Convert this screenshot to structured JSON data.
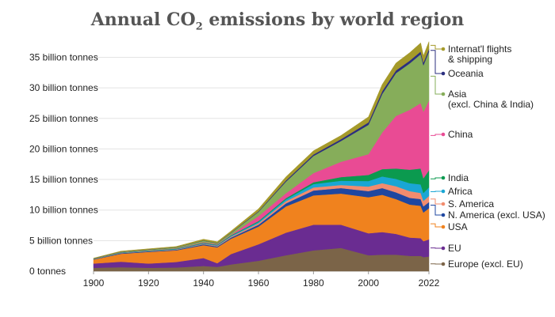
{
  "chart_data": {
    "type": "area",
    "stacked": true,
    "title": "Annual CO₂ emissions by world region",
    "title_main": "Annual CO",
    "title_sub": "2",
    "title_rest": " emissions by world region",
    "xlabel": "",
    "ylabel": "",
    "xlim": [
      1900,
      2022
    ],
    "ylim": [
      0,
      37
    ],
    "grid": true,
    "legend": "right (direct labels)",
    "x_ticks": [
      "1900",
      "1920",
      "1940",
      "1960",
      "1980",
      "2000",
      "2022"
    ],
    "y_ticks": [
      {
        "value": 0,
        "label": "0 tonnes"
      },
      {
        "value": 5,
        "label": "5 billion tonnes"
      },
      {
        "value": 10,
        "label": "10 billion tonnes"
      },
      {
        "value": 15,
        "label": "15 billion tonnes"
      },
      {
        "value": 20,
        "label": "20 billion tonnes"
      },
      {
        "value": 25,
        "label": "25 billion tonnes"
      },
      {
        "value": 30,
        "label": "30 billion tonnes"
      },
      {
        "value": 35,
        "label": "35 billion tonnes"
      }
    ],
    "x": [
      1900,
      1910,
      1920,
      1930,
      1940,
      1945,
      1950,
      1960,
      1970,
      1980,
      1990,
      2000,
      2005,
      2010,
      2015,
      2019,
      2020,
      2022
    ],
    "series": [
      {
        "name": "Europe (excl. EU)",
        "color": "#7b6448",
        "values": [
          0.55,
          0.65,
          0.55,
          0.6,
          0.85,
          0.7,
          1.1,
          1.7,
          2.6,
          3.4,
          3.8,
          2.6,
          2.7,
          2.7,
          2.5,
          2.5,
          2.3,
          2.4
        ]
      },
      {
        "name": "EU",
        "color": "#6a2c91",
        "values": [
          0.7,
          0.9,
          0.7,
          0.9,
          1.3,
          0.6,
          1.7,
          2.7,
          3.7,
          4.2,
          3.8,
          3.6,
          3.7,
          3.4,
          3.0,
          2.9,
          2.6,
          2.8
        ]
      },
      {
        "name": "USA",
        "color": "#f0821e",
        "values": [
          0.65,
          1.3,
          1.9,
          1.9,
          2.1,
          2.6,
          2.5,
          2.9,
          4.3,
          4.8,
          5.1,
          5.9,
          6.1,
          5.7,
          5.4,
          5.3,
          4.7,
          5.1
        ]
      },
      {
        "name": "N. America (excl. USA)",
        "color": "#1f47a0",
        "values": [
          0.05,
          0.1,
          0.1,
          0.1,
          0.15,
          0.15,
          0.2,
          0.3,
          0.5,
          0.8,
          0.9,
          1.0,
          1.1,
          1.1,
          1.1,
          1.1,
          1.0,
          1.0
        ]
      },
      {
        "name": "S. America",
        "color": "#f28c6e",
        "values": [
          0.02,
          0.04,
          0.05,
          0.06,
          0.08,
          0.1,
          0.15,
          0.25,
          0.35,
          0.5,
          0.5,
          0.75,
          0.8,
          1.0,
          1.1,
          1.0,
          0.9,
          1.0
        ]
      },
      {
        "name": "Africa",
        "color": "#1aa6d4",
        "values": [
          0.02,
          0.04,
          0.05,
          0.06,
          0.08,
          0.1,
          0.12,
          0.2,
          0.3,
          0.55,
          0.7,
          0.9,
          1.1,
          1.2,
          1.3,
          1.4,
          1.3,
          1.4
        ]
      },
      {
        "name": "India",
        "color": "#0b9a4f",
        "values": [
          0.03,
          0.05,
          0.05,
          0.06,
          0.08,
          0.08,
          0.1,
          0.15,
          0.2,
          0.3,
          0.6,
          1.0,
          1.2,
          1.7,
          2.2,
          2.6,
          2.4,
          2.8
        ]
      },
      {
        "name": "China",
        "color": "#e94b94",
        "values": [
          0.01,
          0.02,
          0.03,
          0.05,
          0.1,
          0.1,
          0.08,
          0.8,
          0.8,
          1.5,
          2.5,
          3.4,
          6.0,
          8.6,
          9.8,
          10.7,
          10.9,
          11.4
        ]
      },
      {
        "name": "Asia (excl. China & India)",
        "color": "#86ad5a",
        "values": [
          0.04,
          0.08,
          0.1,
          0.15,
          0.25,
          0.15,
          0.3,
          0.7,
          1.9,
          2.8,
          3.4,
          4.8,
          6.3,
          7.0,
          7.6,
          8.0,
          7.6,
          8.0
        ]
      },
      {
        "name": "Oceania",
        "color": "#2b2f7f",
        "values": [
          0.01,
          0.02,
          0.03,
          0.03,
          0.04,
          0.04,
          0.06,
          0.1,
          0.2,
          0.25,
          0.3,
          0.4,
          0.45,
          0.45,
          0.45,
          0.45,
          0.45,
          0.45
        ]
      },
      {
        "name": "Internat'l flights & shipping",
        "color": "#a59a2a",
        "values": [
          0.05,
          0.08,
          0.1,
          0.12,
          0.2,
          0.2,
          0.25,
          0.4,
          0.6,
          0.6,
          0.6,
          0.9,
          1.1,
          1.2,
          1.3,
          1.4,
          1.1,
          1.2
        ]
      }
    ],
    "labels": [
      {
        "lines": [
          "Internat'l flights",
          "& shipping"
        ]
      },
      {
        "lines": [
          "Oceania"
        ]
      },
      {
        "lines": [
          "Asia",
          "(excl. China & India)"
        ]
      },
      {
        "lines": [
          "China"
        ]
      },
      {
        "lines": [
          "India"
        ]
      },
      {
        "lines": [
          "Africa"
        ]
      },
      {
        "lines": [
          "S. America"
        ]
      },
      {
        "lines": [
          "N. America (excl. USA)"
        ]
      },
      {
        "lines": [
          "USA"
        ]
      },
      {
        "lines": [
          "EU"
        ]
      },
      {
        "lines": [
          "Europe (excl. EU)"
        ]
      }
    ]
  }
}
